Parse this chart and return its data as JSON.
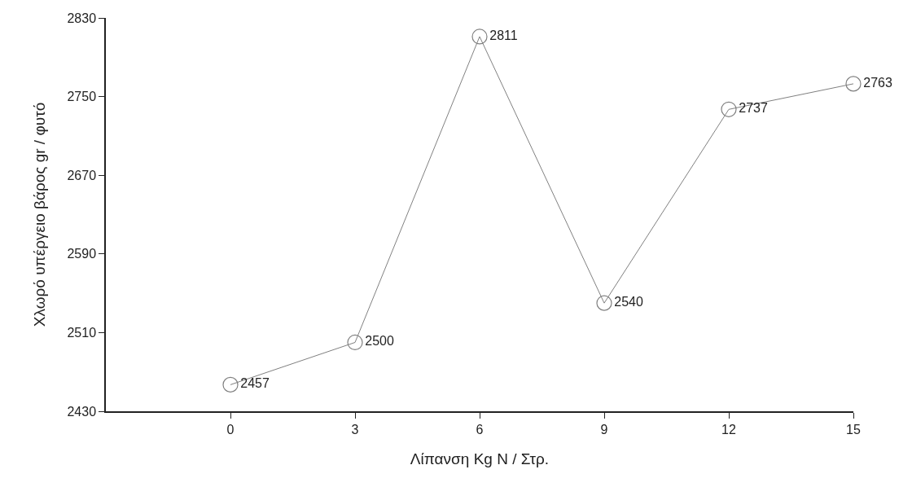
{
  "chart_data": {
    "type": "line",
    "xlabel": "Λίπανση Kg N / Στρ.",
    "ylabel": "Χλωρό υπέργειο βάρος gr / φυτό",
    "x": [
      0,
      3,
      6,
      9,
      12,
      15
    ],
    "series": [
      {
        "color": "#808080",
        "values": [
          2457,
          2500,
          2811,
          2540,
          2737,
          2763
        ]
      }
    ],
    "xlim": [
      -3,
      15
    ],
    "xticks": [
      0,
      3,
      6,
      9,
      12,
      15
    ],
    "ylim": [
      2430,
      2830
    ],
    "yticks": [
      2430,
      2510,
      2590,
      2670,
      2750,
      2830
    ],
    "grid": false,
    "marker": "circle",
    "line_style": "solid",
    "data_labels": true
  }
}
